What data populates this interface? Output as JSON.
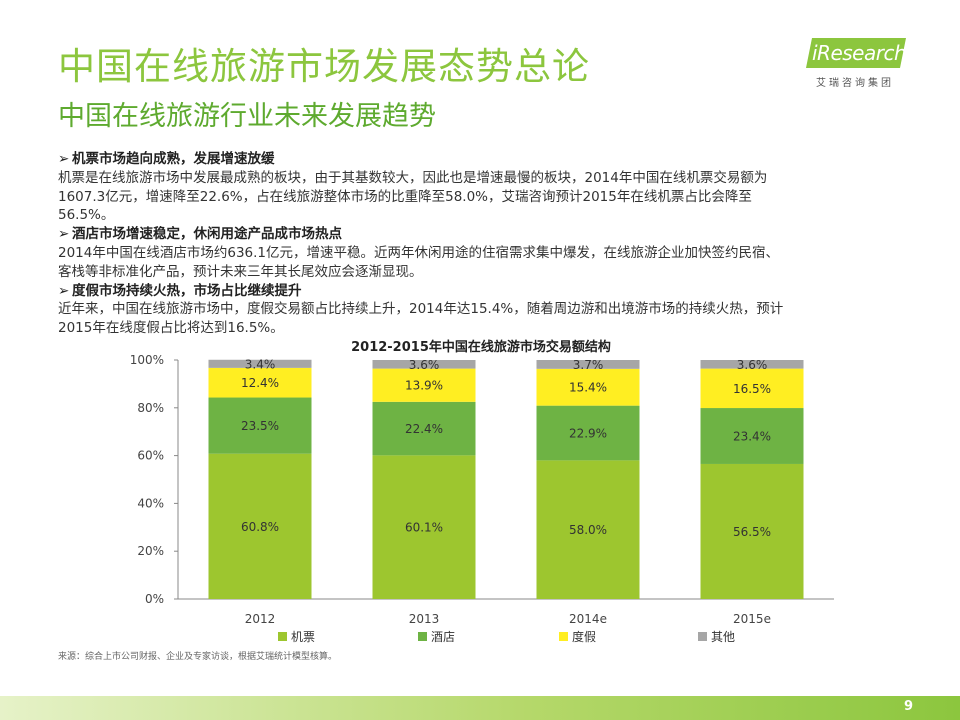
{
  "header": {
    "title": "中国在线旅游市场发展态势总论",
    "subtitle": "中国在线旅游行业未来发展趋势"
  },
  "logo": {
    "text": "iResearch",
    "sub": "艾瑞咨询集团"
  },
  "body": {
    "sections": [
      {
        "arrow": "➢",
        "heading": "机票市场趋向成熟，发展增速放缓",
        "lines": [
          "机票是在线旅游市场中发展最成熟的板块，由于其基数较大，因此也是增速最慢的板块，2014年中国在线机票交易额为",
          "1607.3亿元，增速降至22.6%，占在线旅游整体市场的比重降至58.0%，艾瑞咨询预计2015年在线机票占比会降至",
          "56.5%。"
        ]
      },
      {
        "arrow": "➢",
        "heading": "酒店市场增速稳定，休闲用途产品成市场热点",
        "lines": [
          "2014年中国在线酒店市场约636.1亿元，增速平稳。近两年休闲用途的住宿需求集中爆发，在线旅游企业加快签约民宿、",
          "客栈等非标准化产品，预计未来三年其长尾效应会逐渐显现。"
        ]
      },
      {
        "arrow": "➢",
        "heading": "度假市场持续火热，市场占比继续提升",
        "lines": [
          "近年来，中国在线旅游市场中，度假交易额占比持续上升，2014年达15.4%，随着周边游和出境游市场的持续火热，预计",
          "2015年在线度假占比将达到16.5%。"
        ]
      }
    ]
  },
  "chart_data": {
    "type": "bar",
    "stacked": true,
    "title": "2012-2015年中国在线旅游市场交易额结构",
    "categories": [
      "2012",
      "2013",
      "2014e",
      "2015e"
    ],
    "ylim": [
      0,
      100
    ],
    "yticks": [
      "0%",
      "20%",
      "40%",
      "60%",
      "80%",
      "100%"
    ],
    "grid": false,
    "legend_position": "bottom",
    "series": [
      {
        "name": "机票",
        "color": "#9dc62f",
        "values": [
          60.8,
          60.1,
          58.0,
          56.5
        ],
        "labels": [
          "60.8%",
          "60.1%",
          "58.0%",
          "56.5%"
        ]
      },
      {
        "name": "酒店",
        "color": "#6eb344",
        "values": [
          23.5,
          22.4,
          22.9,
          23.4
        ],
        "labels": [
          "23.5%",
          "22.4%",
          "22.9%",
          "23.4%"
        ]
      },
      {
        "name": "度假",
        "color": "#ffee22",
        "values": [
          12.4,
          13.9,
          15.4,
          16.5
        ],
        "labels": [
          "12.4%",
          "13.9%",
          "15.4%",
          "16.5%"
        ]
      },
      {
        "name": "其他",
        "color": "#a6a6a6",
        "values": [
          3.4,
          3.6,
          3.7,
          3.6
        ],
        "labels": [
          "3.4%",
          "3.6%",
          "3.7%",
          "3.6%"
        ]
      }
    ]
  },
  "source": "来源：综合上市公司财报、企业及专家访谈，根据艾瑞统计模型核算。",
  "footer": {
    "page_number": "9"
  },
  "colors": {
    "accent": "#8cc63e",
    "accent_dark": "#5eaa2f"
  }
}
